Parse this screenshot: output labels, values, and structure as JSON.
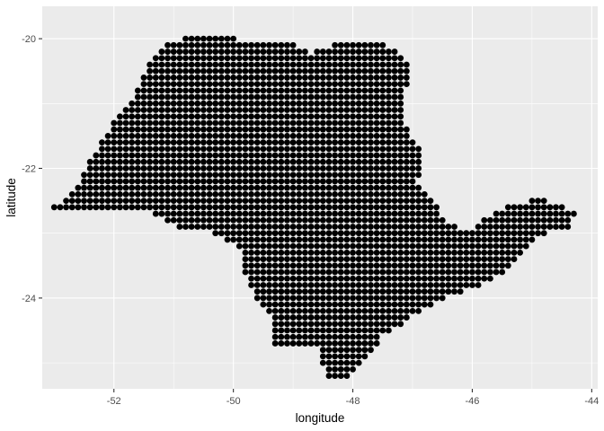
{
  "chart_data": {
    "type": "scatter",
    "title": "",
    "xlabel": "longitude",
    "ylabel": "latitude",
    "xlim": [
      -53.2,
      -43.9
    ],
    "ylim": [
      -25.4,
      -19.5
    ],
    "x_ticks": [
      -52,
      -50,
      -48,
      -46,
      -44
    ],
    "y_ticks": [
      -20,
      -22,
      -24
    ],
    "x_tick_labels": [
      "-52",
      "-50",
      "-48",
      "-46",
      "-44"
    ],
    "y_tick_labels": [
      "-20",
      "-22",
      "-24"
    ],
    "grid": true,
    "legend": "none",
    "point_color": "#000000",
    "panel_color": "#ebebeb",
    "grid_color": "#ffffff",
    "grid_spacing_deg": 0.1,
    "series": [
      {
        "outline": [
          [
            -53.1,
            -22.6
          ],
          [
            -52.75,
            -22.45
          ],
          [
            -52.5,
            -22.05
          ],
          [
            -52.3,
            -21.7
          ],
          [
            -52.05,
            -21.35
          ],
          [
            -51.75,
            -21.0
          ],
          [
            -51.55,
            -20.6
          ],
          [
            -51.3,
            -20.2
          ],
          [
            -51.05,
            -20.05
          ],
          [
            -50.6,
            -19.9
          ],
          [
            -50.15,
            -19.9
          ],
          [
            -49.8,
            -20.05
          ],
          [
            -49.45,
            -20.05
          ],
          [
            -49.0,
            -20.05
          ],
          [
            -48.7,
            -20.2
          ],
          [
            -48.2,
            -20.05
          ],
          [
            -47.7,
            -20.0
          ],
          [
            -47.45,
            -20.1
          ],
          [
            -47.2,
            -20.2
          ],
          [
            -47.0,
            -20.5
          ],
          [
            -47.1,
            -20.8
          ],
          [
            -47.15,
            -21.3
          ],
          [
            -46.85,
            -21.7
          ],
          [
            -46.8,
            -22.05
          ],
          [
            -46.95,
            -22.25
          ],
          [
            -46.65,
            -22.5
          ],
          [
            -46.45,
            -22.85
          ],
          [
            -46.0,
            -22.95
          ],
          [
            -45.6,
            -22.65
          ],
          [
            -45.3,
            -22.55
          ],
          [
            -44.9,
            -22.45
          ],
          [
            -44.6,
            -22.55
          ],
          [
            -44.2,
            -22.65
          ],
          [
            -44.4,
            -22.95
          ],
          [
            -44.8,
            -23.0
          ],
          [
            -45.2,
            -23.4
          ],
          [
            -45.55,
            -23.65
          ],
          [
            -46.0,
            -23.85
          ],
          [
            -46.6,
            -24.05
          ],
          [
            -47.1,
            -24.35
          ],
          [
            -47.5,
            -24.6
          ],
          [
            -47.8,
            -24.95
          ],
          [
            -48.1,
            -25.25
          ],
          [
            -48.45,
            -25.2
          ],
          [
            -48.55,
            -24.8
          ],
          [
            -48.85,
            -24.7
          ],
          [
            -49.3,
            -24.7
          ],
          [
            -49.3,
            -24.3
          ],
          [
            -49.6,
            -24.0
          ],
          [
            -49.8,
            -23.6
          ],
          [
            -49.8,
            -23.3
          ],
          [
            -50.1,
            -23.1
          ],
          [
            -50.5,
            -22.9
          ],
          [
            -50.9,
            -22.9
          ],
          [
            -51.3,
            -22.7
          ],
          [
            -51.8,
            -22.65
          ],
          [
            -52.15,
            -22.65
          ],
          [
            -52.6,
            -22.65
          ],
          [
            -53.1,
            -22.6
          ]
        ]
      }
    ]
  }
}
